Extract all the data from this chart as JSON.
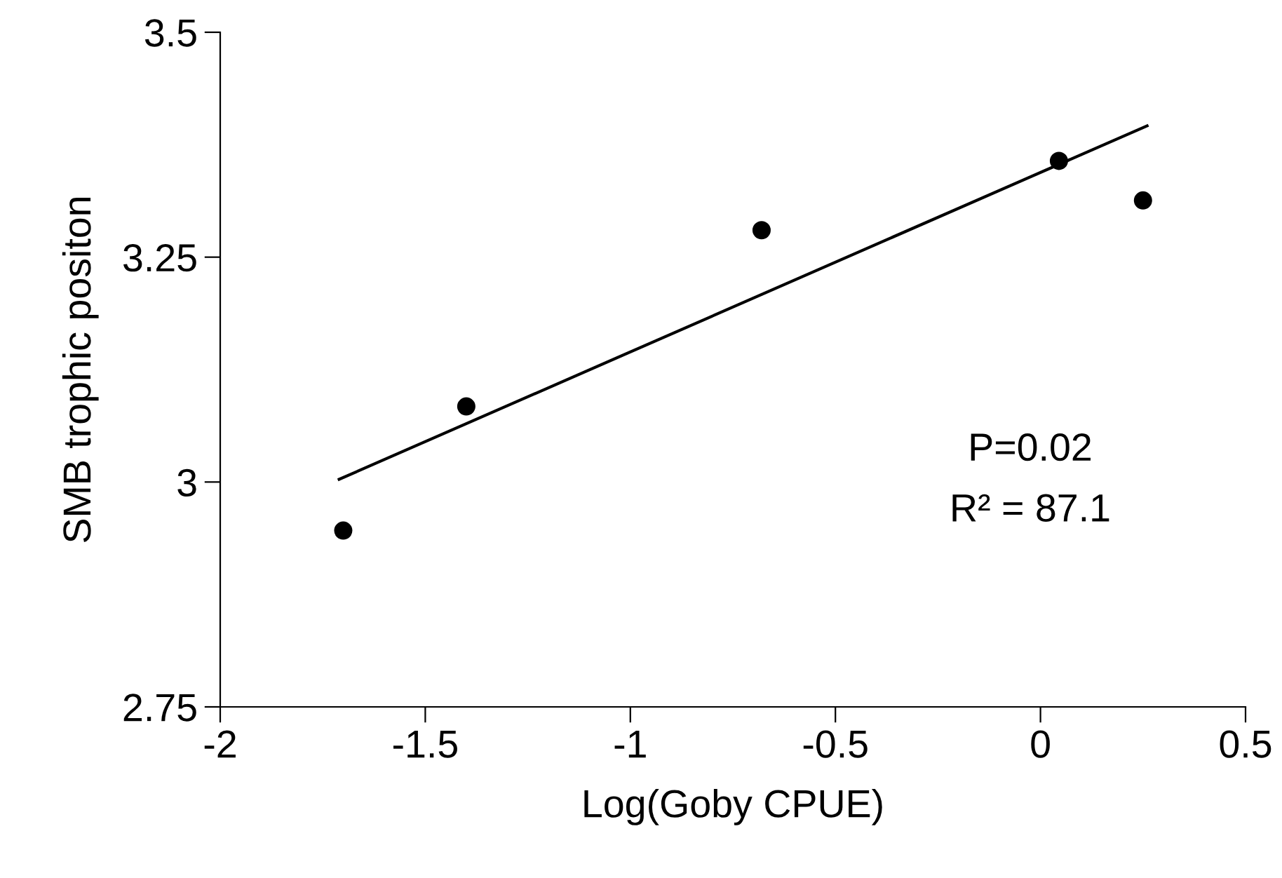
{
  "chart_data": {
    "type": "scatter",
    "xlabel": "Log(Goby CPUE)",
    "ylabel": "SMB trophic positon",
    "series": [
      {
        "type": "scatter",
        "color": "#000000",
        "marker": "circle",
        "x": [
          -1.7,
          -1.4,
          -0.68,
          0.045,
          0.25
        ],
        "values": [
          2.946,
          3.084,
          3.28,
          3.357,
          3.313
        ]
      },
      {
        "type": "line",
        "color": "#000000",
        "marker": "none",
        "line_style": "solid",
        "x": [
          -1.71,
          0.26
        ],
        "values": [
          3.003,
          3.396
        ]
      }
    ],
    "annotations": [
      {
        "text": "P=0.02"
      },
      {
        "text": "R² = 87.1"
      }
    ],
    "xlim": [
      -2,
      0.5
    ],
    "xticks": [
      -2,
      -1.5,
      -1,
      -0.5,
      0,
      0.5
    ],
    "ylim": [
      2.75,
      3.5
    ],
    "yticks": [
      2.75,
      3,
      3.25,
      3.5
    ],
    "grid": false,
    "legend": false
  }
}
